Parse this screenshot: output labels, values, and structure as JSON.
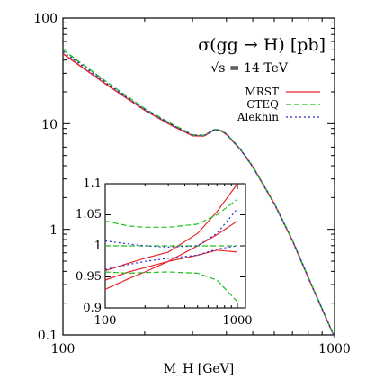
{
  "chart_data": [
    {
      "type": "line",
      "title": "σ(gg → H) [pb]",
      "subtitle": "√s = 14 TeV",
      "xlabel": "M_H [GeV]",
      "ylabel": "",
      "xscale": "log",
      "yscale": "log",
      "xlim": [
        100,
        1000
      ],
      "ylim": [
        0.1,
        100
      ],
      "x_ticks": [
        "100",
        "1000"
      ],
      "y_ticks": [
        "0.1",
        "1",
        "10",
        "100"
      ],
      "legend_position": "top-right",
      "series": [
        {
          "name": "MRST",
          "color": "#e8252b",
          "style": "solid",
          "x": [
            100,
            120,
            150,
            200,
            250,
            300,
            330,
            350,
            360,
            380,
            400,
            450,
            500,
            600,
            700,
            800,
            900,
            1000
          ],
          "y": [
            46,
            33,
            22,
            13.4,
            9.7,
            7.7,
            7.65,
            8.3,
            8.7,
            8.6,
            7.9,
            5.7,
            3.9,
            1.75,
            0.78,
            0.35,
            0.175,
            0.095
          ]
        },
        {
          "name": "CTEQ",
          "color": "#1ec21e",
          "style": "dashed",
          "x": [
            100,
            120,
            150,
            200,
            250,
            300,
            330,
            350,
            360,
            380,
            400,
            450,
            500,
            600,
            700,
            800,
            900,
            1000
          ],
          "y": [
            50,
            35.5,
            23.2,
            13.9,
            10.0,
            7.85,
            7.75,
            8.4,
            8.8,
            8.7,
            8.0,
            5.75,
            3.95,
            1.77,
            0.79,
            0.354,
            0.177,
            0.096
          ]
        },
        {
          "name": "Alekhin",
          "color": "#2b2bd6",
          "style": "dotted",
          "x": [
            100,
            120,
            150,
            200,
            250,
            300,
            330,
            350,
            360,
            380,
            400,
            450,
            500,
            600,
            700,
            800,
            900,
            1000
          ],
          "y": [
            48,
            34.3,
            22.6,
            13.6,
            9.85,
            7.78,
            7.7,
            8.35,
            8.75,
            8.65,
            7.95,
            5.72,
            3.92,
            1.76,
            0.785,
            0.352,
            0.176,
            0.0955
          ]
        }
      ]
    },
    {
      "type": "line",
      "placement": "inset",
      "xscale": "log",
      "xlim": [
        100,
        1000
      ],
      "ylim": [
        0.9,
        1.1
      ],
      "x_ticks": [
        "100",
        "1000"
      ],
      "y_ticks": [
        "0.9",
        "0.95",
        "1",
        "1.05",
        "1.1"
      ],
      "series": [
        {
          "name": "MRST",
          "color": "#e8252b",
          "style": "solid",
          "x": [
            100,
            150,
            200,
            300,
            500,
            700,
            1000
          ],
          "y": [
            0.93,
            0.947,
            0.958,
            0.975,
            1.0,
            1.018,
            1.04
          ]
        },
        {
          "name": "MRST",
          "color": "#e8252b",
          "style": "solid",
          "x": [
            100,
            150,
            200,
            300,
            500,
            700,
            1000
          ],
          "y": [
            0.96,
            0.972,
            0.98,
            0.99,
            1.02,
            1.055,
            1.1
          ]
        },
        {
          "name": "MRST",
          "color": "#e8252b",
          "style": "solid",
          "x": [
            100,
            150,
            200,
            300,
            500,
            700,
            1000
          ],
          "y": [
            0.945,
            0.958,
            0.965,
            0.975,
            0.985,
            0.993,
            0.99
          ]
        },
        {
          "name": "CTEQ",
          "color": "#1ec21e",
          "style": "dashed",
          "x": [
            100,
            150,
            200,
            300,
            500,
            700,
            1000
          ],
          "y": [
            1.04,
            1.032,
            1.03,
            1.03,
            1.035,
            1.05,
            1.075
          ]
        },
        {
          "name": "CTEQ",
          "color": "#1ec21e",
          "style": "dashed",
          "x": [
            100,
            150,
            200,
            300,
            500,
            700,
            1000
          ],
          "y": [
            0.958,
            0.956,
            0.957,
            0.958,
            0.956,
            0.945,
            0.91
          ]
        },
        {
          "name": "CTEQ",
          "color": "#1ec21e",
          "style": "dashed",
          "x": [
            100,
            150,
            200,
            300,
            500,
            700,
            1000
          ],
          "y": [
            1.0,
            1.0,
            1.0,
            1.0,
            1.0,
            1.0,
            1.0
          ]
        },
        {
          "name": "Alekhin",
          "color": "#2b2bd6",
          "style": "dotted",
          "x": [
            100,
            150,
            200,
            300,
            500,
            700,
            1000
          ],
          "y": [
            1.008,
            1.003,
            1.0,
            0.998,
            1.0,
            1.02,
            1.06
          ]
        },
        {
          "name": "Alekhin",
          "color": "#2b2bd6",
          "style": "dotted",
          "x": [
            100,
            150,
            200,
            300,
            500,
            700,
            1000
          ],
          "y": [
            0.962,
            0.97,
            0.975,
            0.98,
            0.985,
            0.995,
            1.0
          ]
        }
      ]
    }
  ]
}
